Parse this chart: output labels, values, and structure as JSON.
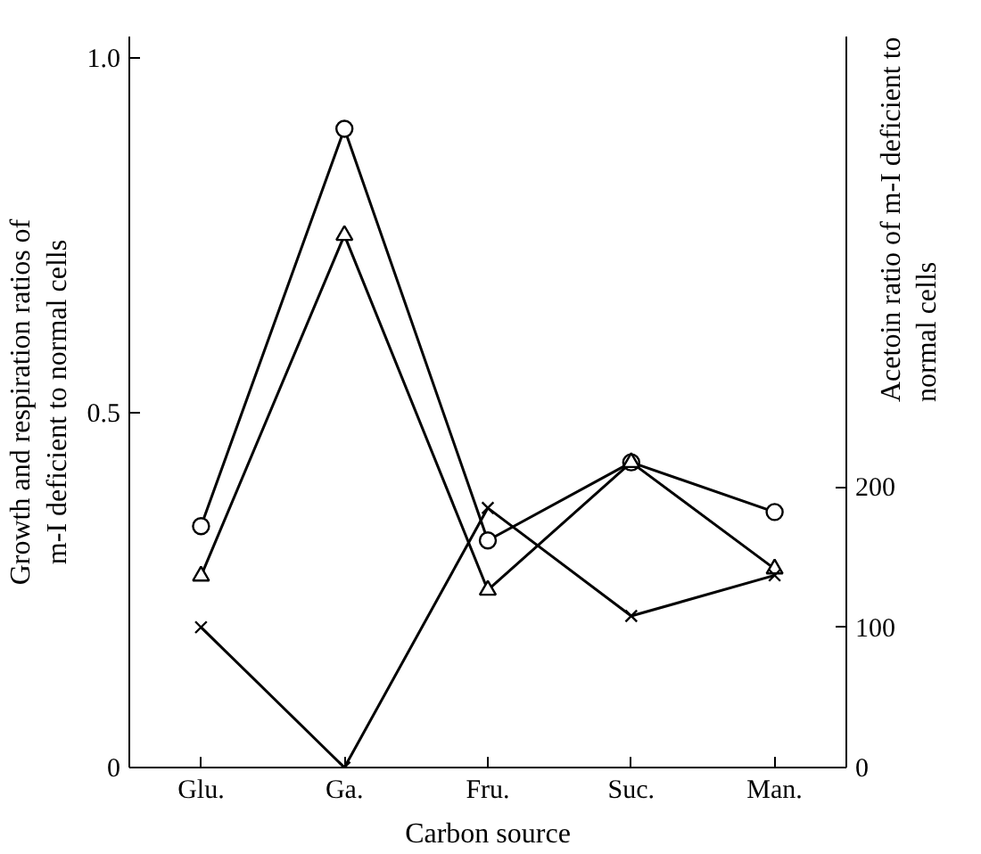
{
  "chart_data": {
    "type": "line",
    "xlabel": "Carbon source",
    "ylabel": "Growth and respiration ratios of\nm-I deficient to normal cells",
    "y2label": "Acetoin ratio of m-I deficient to\nnormal cells",
    "categories": [
      "Glu.",
      "Ga.",
      "Fru.",
      "Suc.",
      "Man."
    ],
    "series": [
      {
        "color": "#000000",
        "marker": "circle",
        "values": [
          0.34,
          0.9,
          0.32,
          0.43,
          0.36
        ]
      },
      {
        "color": "#000000",
        "marker": "triangle",
        "values": [
          0.27,
          0.75,
          0.25,
          0.43,
          0.28
        ]
      },
      {
        "color": "#000000",
        "marker": "cross",
        "axis": "y2",
        "values": [
          100,
          0,
          185,
          108,
          137
        ]
      }
    ],
    "ylim": [
      0,
      1.03
    ],
    "yticks": [
      0,
      {
        "value": 0.5,
        "label": "0.5"
      },
      {
        "value": 1.0,
        "label": "1.0"
      }
    ],
    "y2lim": [
      0,
      521
    ],
    "y2ticks": [
      0,
      100,
      200
    ],
    "grid": false,
    "line_style": "solid"
  }
}
